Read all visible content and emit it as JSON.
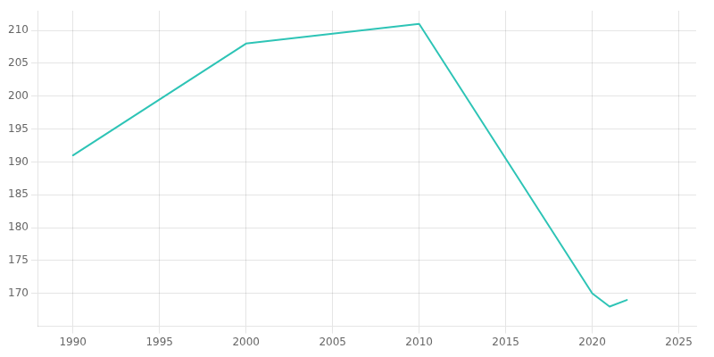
{
  "chart_data": {
    "type": "line",
    "x": [
      1990,
      2000,
      2010,
      2020,
      2021,
      2022
    ],
    "values": [
      191,
      208,
      211,
      170,
      168,
      169
    ],
    "color": "#2EC4B6",
    "xlim": [
      1988,
      2026
    ],
    "ylim": [
      165,
      213
    ],
    "xticks": [
      1990,
      1995,
      2000,
      2005,
      2010,
      2015,
      2020,
      2025
    ],
    "yticks": [
      170,
      175,
      180,
      185,
      190,
      195,
      200,
      205,
      210
    ],
    "grid": true
  }
}
